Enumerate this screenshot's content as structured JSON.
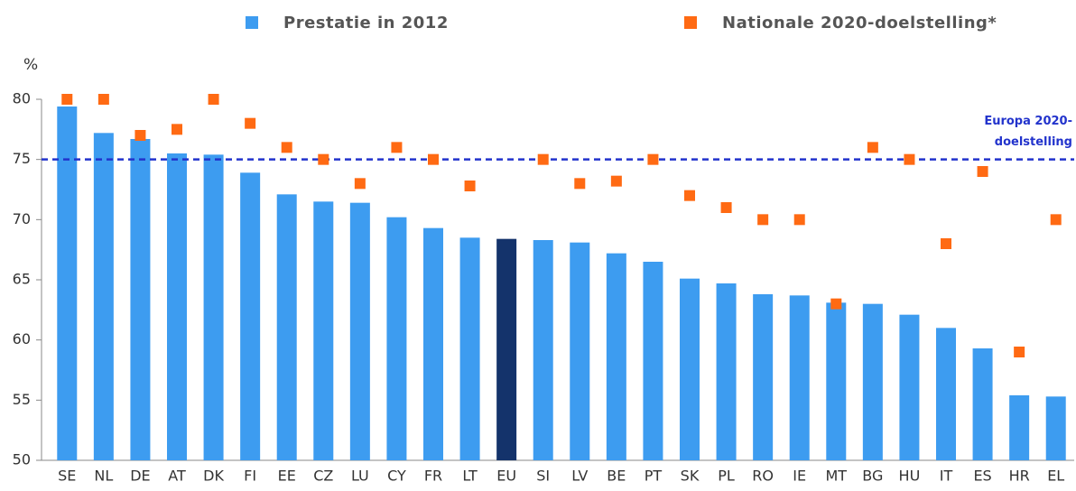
{
  "chart_data": {
    "type": "bar",
    "y_label": "%",
    "categories": [
      "SE",
      "NL",
      "DE",
      "AT",
      "DK",
      "FI",
      "EE",
      "CZ",
      "LU",
      "CY",
      "FR",
      "LT",
      "EU",
      "SI",
      "LV",
      "BE",
      "PT",
      "SK",
      "PL",
      "RO",
      "IE",
      "MT",
      "BG",
      "HU",
      "IT",
      "ES",
      "HR",
      "EL"
    ],
    "series": [
      {
        "name": "Prestatie in 2012",
        "color": "#3d9cf0",
        "colors": [
          "#3d9cf0",
          "#3d9cf0",
          "#3d9cf0",
          "#3d9cf0",
          "#3d9cf0",
          "#3d9cf0",
          "#3d9cf0",
          "#3d9cf0",
          "#3d9cf0",
          "#3d9cf0",
          "#3d9cf0",
          "#3d9cf0",
          "#14336b",
          "#3d9cf0",
          "#3d9cf0",
          "#3d9cf0",
          "#3d9cf0",
          "#3d9cf0",
          "#3d9cf0",
          "#3d9cf0",
          "#3d9cf0",
          "#3d9cf0",
          "#3d9cf0",
          "#3d9cf0",
          "#3d9cf0",
          "#3d9cf0",
          "#3d9cf0",
          "#3d9cf0"
        ],
        "values": [
          79.4,
          77.2,
          76.7,
          75.5,
          75.4,
          73.9,
          72.1,
          71.5,
          71.4,
          70.2,
          69.3,
          68.5,
          68.4,
          68.3,
          68.1,
          67.2,
          66.5,
          65.1,
          64.7,
          63.8,
          63.7,
          63.1,
          63.0,
          62.1,
          61.0,
          59.3,
          55.4,
          55.3
        ]
      },
      {
        "name": "Nationale 2020-doelstelling*",
        "color": "#ff6a13",
        "marker": "square",
        "values": [
          80,
          80,
          77,
          77.5,
          80,
          78,
          76,
          75,
          73,
          76,
          75,
          72.8,
          null,
          75,
          73,
          73.2,
          75,
          72,
          71,
          70,
          70,
          63,
          76,
          75,
          68,
          74,
          59,
          70
        ]
      }
    ],
    "reference_line": {
      "value": 75,
      "label_lines": [
        "Europa 2020-",
        "doelstelling"
      ],
      "color": "#2233cc"
    },
    "ylim": [
      50,
      80
    ],
    "yticks": [
      50,
      55,
      60,
      65,
      70,
      75,
      80
    ]
  }
}
